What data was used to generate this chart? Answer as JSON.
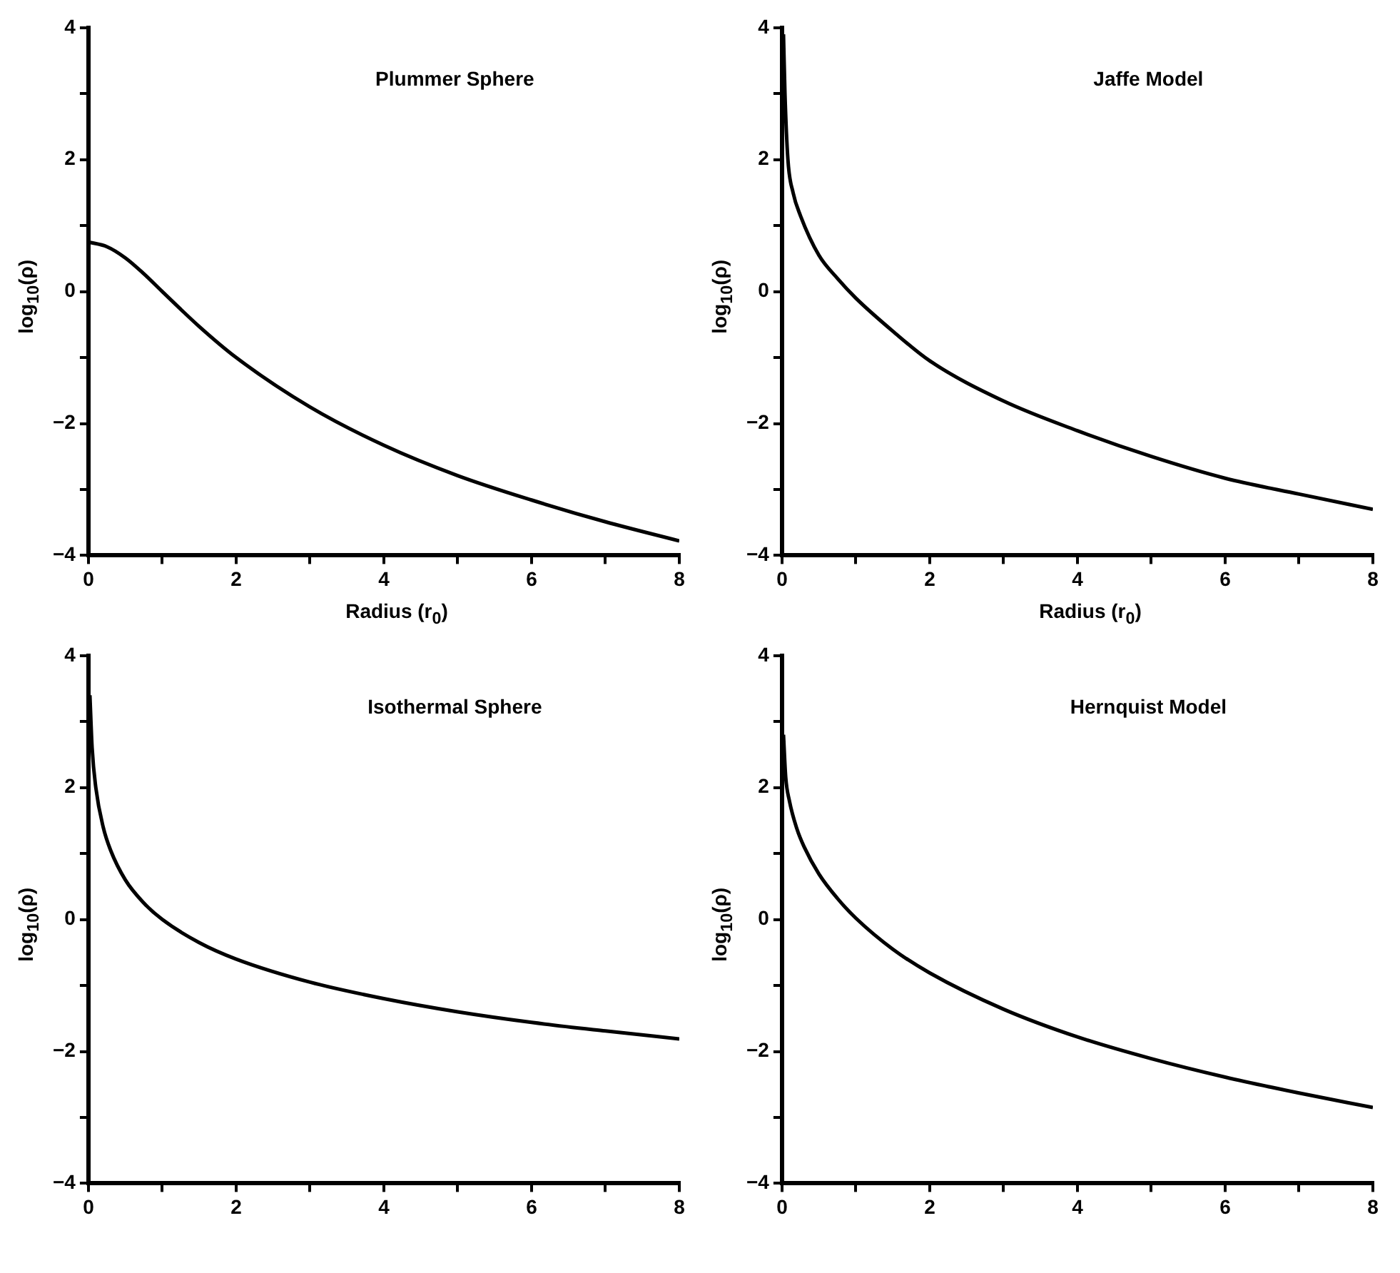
{
  "chart_data": [
    {
      "type": "line",
      "title": "Plummer Sphere",
      "xlabel": "Radius (r$_{0}$)",
      "ylabel": "log$_{10}$(ρ)",
      "color": "#000000",
      "x": [
        0,
        0.25,
        0.5,
        0.75,
        1,
        1.5,
        2,
        3,
        4,
        5,
        6,
        7,
        8
      ],
      "values": [
        0.75,
        0.68,
        0.51,
        0.27,
        0.0,
        -0.53,
        -1.0,
        -1.75,
        -2.33,
        -2.79,
        -3.16,
        -3.49,
        -3.78
      ],
      "xlim": [
        0,
        8
      ],
      "ylim": [
        -4,
        4
      ],
      "xticks": [
        0,
        {
          "value": 1,
          "label": null
        },
        2,
        {
          "value": 3,
          "label": null
        },
        4,
        {
          "value": 5,
          "label": null
        },
        6,
        {
          "value": 7,
          "label": null
        },
        8
      ],
      "yticks": [
        -4,
        {
          "value": -3,
          "label": null
        },
        -2,
        {
          "value": -1,
          "label": null
        },
        0,
        {
          "value": 1,
          "label": null
        },
        2,
        {
          "value": 3,
          "label": null
        },
        4
      ]
    },
    {
      "type": "line",
      "title": "Jaffe Model",
      "xlabel": "Radius (r$_{0}$)",
      "ylabel": "log$_{10}$(ρ)",
      "color": "#000000",
      "x": [
        0.02,
        0.04,
        0.08,
        0.15,
        0.25,
        0.5,
        0.75,
        1,
        1.5,
        2,
        3,
        4,
        5,
        6,
        7,
        8
      ],
      "values": [
        3.9,
        3.0,
        2.0,
        1.5,
        1.15,
        0.55,
        0.2,
        -0.1,
        -0.6,
        -1.05,
        -1.66,
        -2.11,
        -2.5,
        -2.83,
        -3.07,
        -3.3
      ],
      "xlim": [
        0,
        8
      ],
      "ylim": [
        -4,
        4
      ],
      "xticks": [
        0,
        {
          "value": 1,
          "label": null
        },
        2,
        {
          "value": 3,
          "label": null
        },
        4,
        {
          "value": 5,
          "label": null
        },
        6,
        {
          "value": 7,
          "label": null
        },
        8
      ],
      "yticks": [
        -4,
        {
          "value": -3,
          "label": null
        },
        -2,
        {
          "value": -1,
          "label": null
        },
        0,
        {
          "value": 1,
          "label": null
        },
        2,
        {
          "value": 3,
          "label": null
        },
        4
      ]
    },
    {
      "type": "line",
      "title": "Isothermal Sphere",
      "ylabel": "log$_{10}$(ρ)",
      "color": "#000000",
      "x": [
        0.02,
        0.05,
        0.1,
        0.2,
        0.3,
        0.5,
        0.75,
        1,
        1.5,
        2,
        3,
        4,
        5,
        6,
        7,
        8
      ],
      "values": [
        3.4,
        2.6,
        2.0,
        1.4,
        1.05,
        0.6,
        0.25,
        0.0,
        -0.35,
        -0.6,
        -0.95,
        -1.2,
        -1.4,
        -1.56,
        -1.69,
        -1.81
      ],
      "xlim": [
        0,
        8
      ],
      "ylim": [
        -4,
        4
      ],
      "xticks": [
        0,
        {
          "value": 1,
          "label": null
        },
        2,
        {
          "value": 3,
          "label": null
        },
        4,
        {
          "value": 5,
          "label": null
        },
        6,
        {
          "value": 7,
          "label": null
        },
        8
      ],
      "yticks": [
        -4,
        {
          "value": -3,
          "label": null
        },
        -2,
        {
          "value": -1,
          "label": null
        },
        0,
        {
          "value": 1,
          "label": null
        },
        2,
        {
          "value": 3,
          "label": null
        },
        4
      ]
    },
    {
      "type": "line",
      "title": "Hernquist Model",
      "ylabel": "log$_{10}$(ρ)",
      "color": "#000000",
      "x": [
        0.02,
        0.05,
        0.1,
        0.2,
        0.3,
        0.5,
        0.75,
        1,
        1.5,
        2,
        3,
        4,
        5,
        6,
        7,
        8
      ],
      "values": [
        2.8,
        2.16,
        1.8,
        1.38,
        1.1,
        0.69,
        0.32,
        0.02,
        -0.45,
        -0.81,
        -1.36,
        -1.78,
        -2.11,
        -2.39,
        -2.63,
        -2.85
      ],
      "xlim": [
        0,
        8
      ],
      "ylim": [
        -4,
        4
      ],
      "xticks": [
        0,
        {
          "value": 1,
          "label": null
        },
        2,
        {
          "value": 3,
          "label": null
        },
        4,
        {
          "value": 5,
          "label": null
        },
        6,
        {
          "value": 7,
          "label": null
        },
        8
      ],
      "yticks": [
        -4,
        {
          "value": -3,
          "label": null
        },
        -2,
        {
          "value": -1,
          "label": null
        },
        0,
        {
          "value": 1,
          "label": null
        },
        2,
        {
          "value": 3,
          "label": null
        },
        4
      ]
    }
  ]
}
